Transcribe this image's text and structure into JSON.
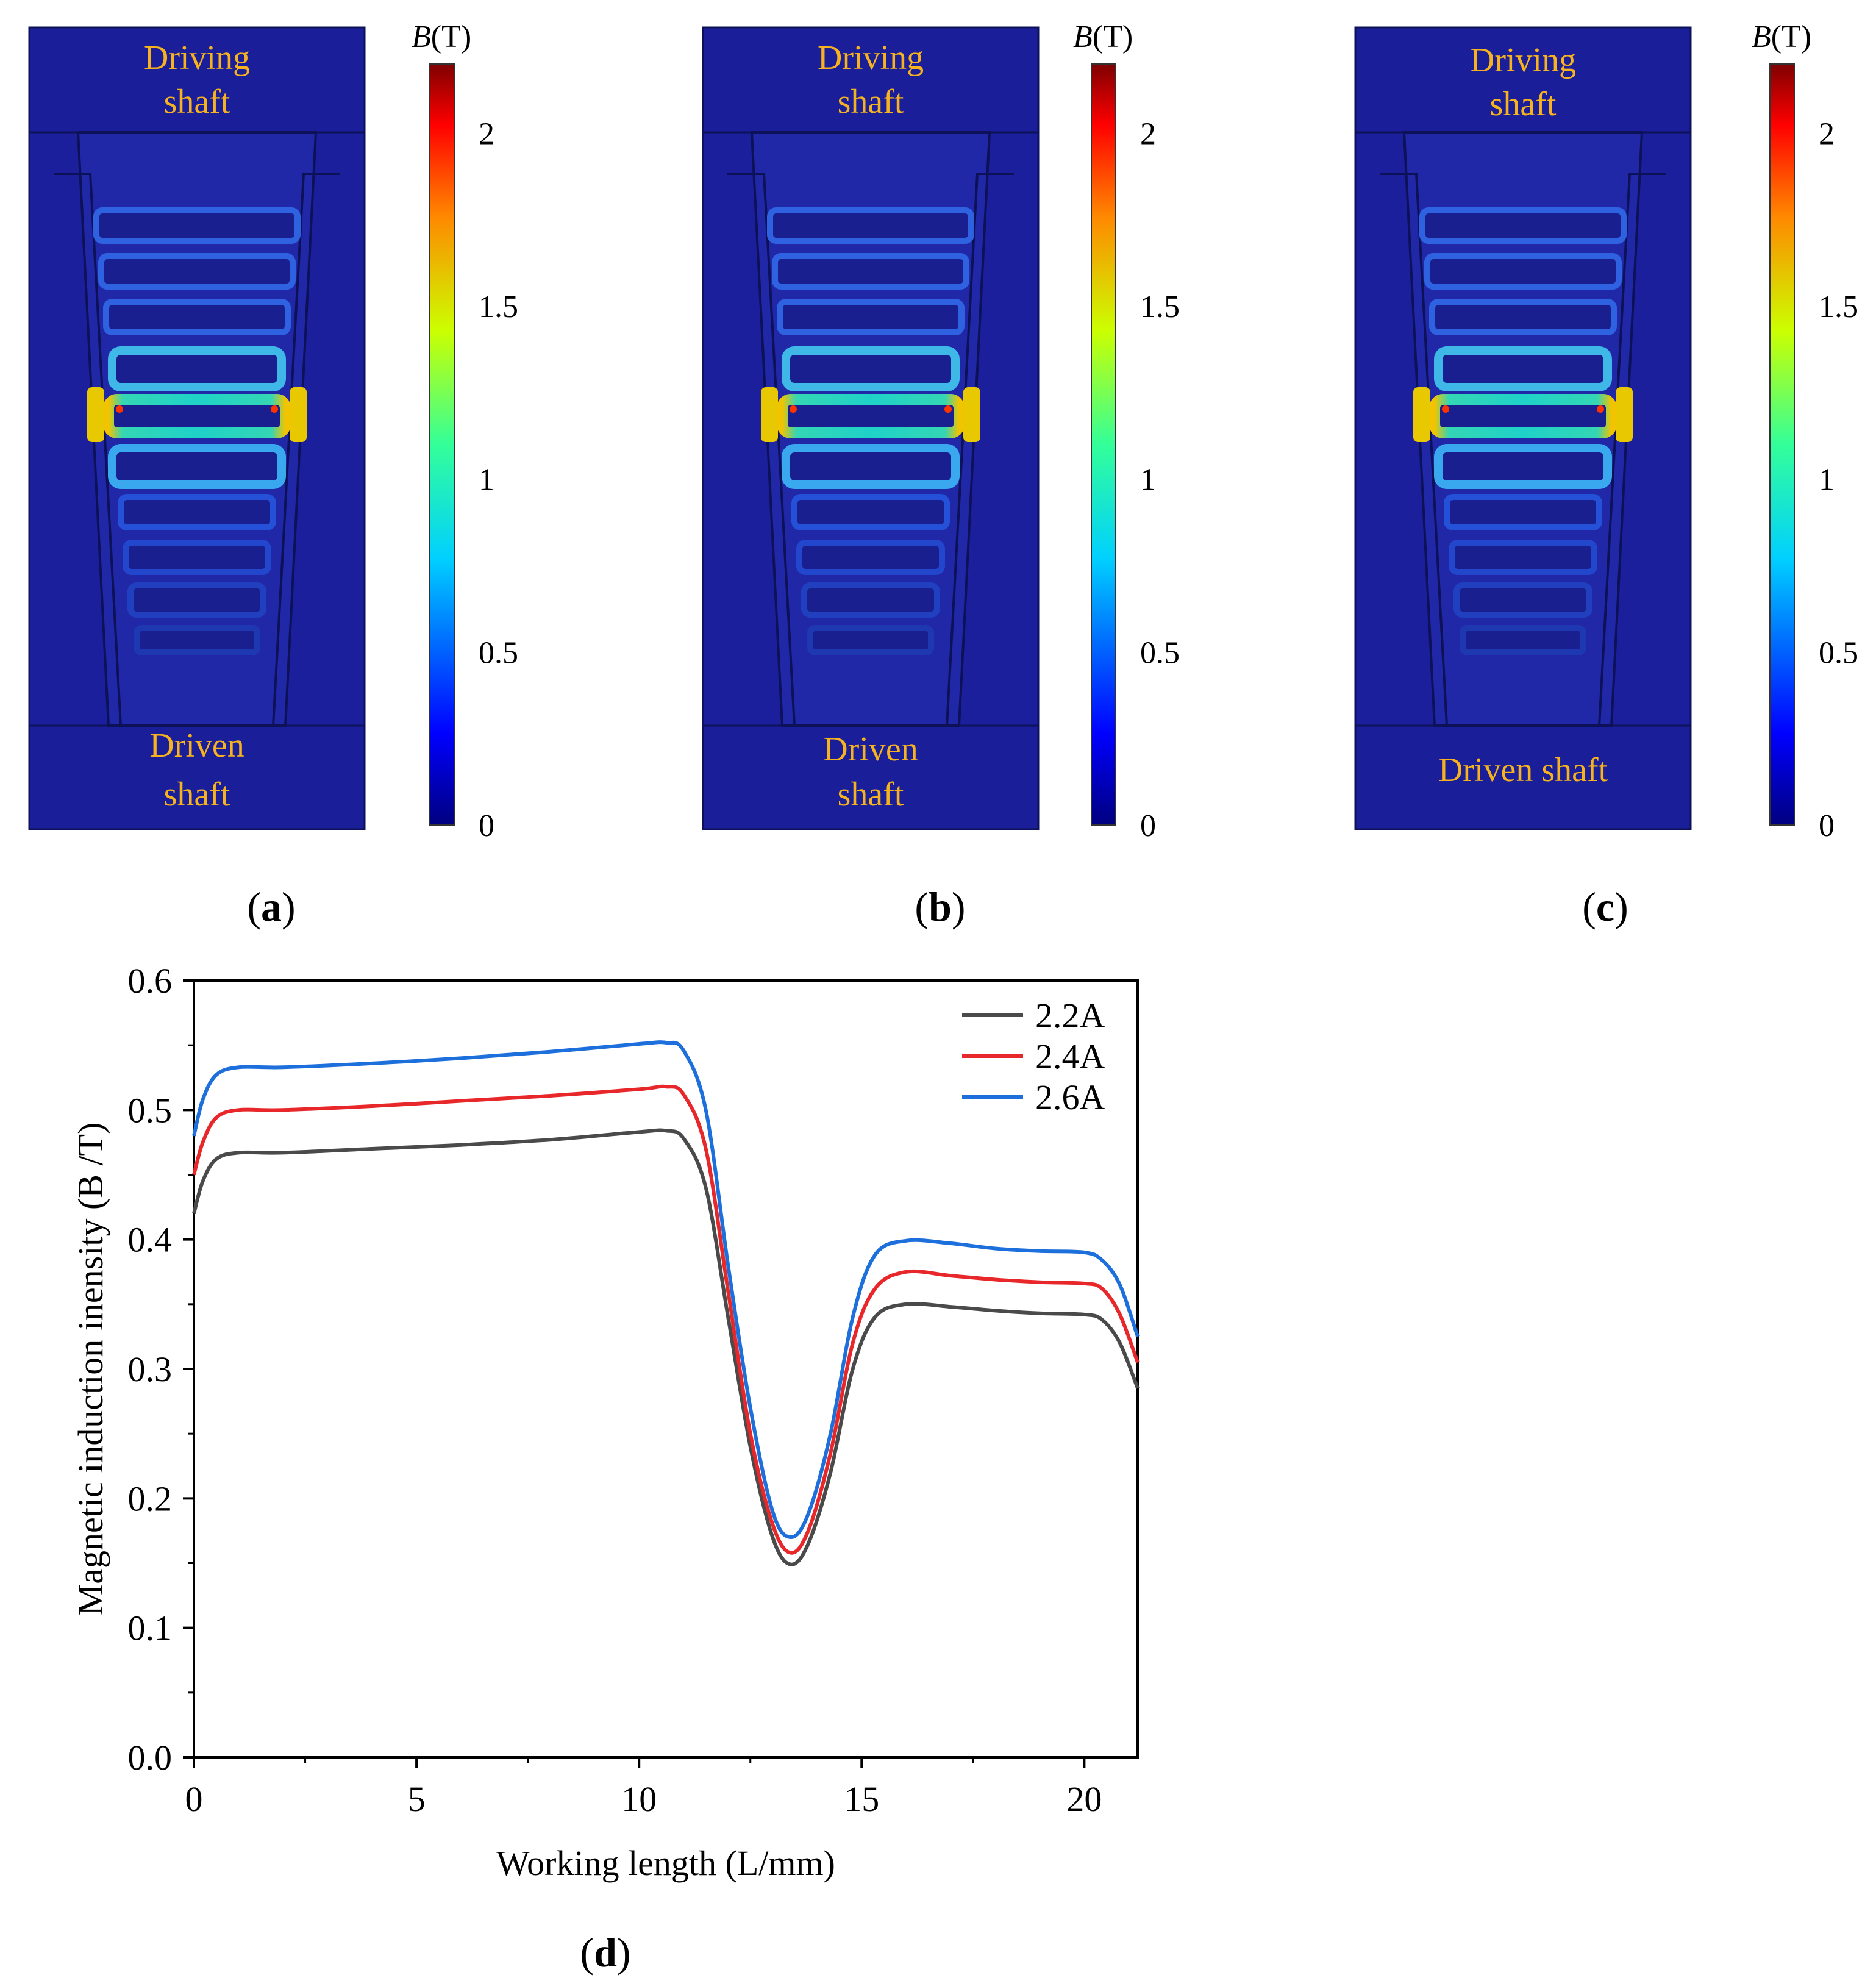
{
  "panels": [
    {
      "id": "a",
      "caption": "a",
      "top_label_line1": "Driving",
      "top_label_line2": "shaft",
      "bottom_label_line1": "Driven",
      "bottom_label_line2": "shaft",
      "colorbar_title_italic": "B",
      "colorbar_title_unit": "(T)",
      "colorbar_ticks": [
        "0",
        "0.5",
        "1",
        "1.5",
        "2"
      ],
      "colorbar_max": 2.2
    },
    {
      "id": "b",
      "caption": "b",
      "top_label_line1": "Driving",
      "top_label_line2": "shaft",
      "bottom_label_line1": "Driven",
      "bottom_label_line2": "shaft",
      "colorbar_title_italic": "B",
      "colorbar_title_unit": "(T)",
      "colorbar_ticks": [
        "0",
        "0.5",
        "1",
        "1.5",
        "2"
      ],
      "colorbar_max": 2.2
    },
    {
      "id": "c",
      "caption": "c",
      "top_label_line1": "Driving",
      "top_label_line2": "shaft",
      "bottom_label_line1": "Driven shaft",
      "bottom_label_line2": "",
      "colorbar_title_italic": "B",
      "colorbar_title_unit": "(T)",
      "colorbar_ticks": [
        "0",
        "0.5",
        "1",
        "1.5",
        "2"
      ],
      "colorbar_max": 2.2
    }
  ],
  "colors": {
    "background_field": "#1b1f9c",
    "label": "#f6b21f",
    "series_2_2A": "#4a4a4a",
    "series_2_4A": "#e8272a",
    "series_2_6A": "#1d6fdc"
  },
  "chart_data": {
    "type": "line",
    "caption": "d",
    "title": "",
    "xlabel": "Working length (L/mm)",
    "ylabel": "Magnetic induction inensity (B /T)",
    "xlim": [
      0,
      21.2
    ],
    "ylim": [
      0.0,
      0.6
    ],
    "xticks": [
      "0",
      "5",
      "10",
      "15",
      "20"
    ],
    "yticks": [
      "0.0",
      "0.1",
      "0.2",
      "0.3",
      "0.4",
      "0.5",
      "0.6"
    ],
    "legend_position": "top-right",
    "x": [
      0,
      0.2,
      0.5,
      1,
      2,
      4,
      6,
      8,
      10,
      10.6,
      11,
      11.5,
      12,
      12.5,
      13,
      13.4,
      13.8,
      14.3,
      14.8,
      15.3,
      16,
      17,
      18,
      19,
      20,
      20.4,
      20.8,
      21.2
    ],
    "series": [
      {
        "name": "2.2A",
        "color": "#4a4a4a",
        "values": [
          0.42,
          0.445,
          0.462,
          0.467,
          0.467,
          0.47,
          0.473,
          0.477,
          0.483,
          0.484,
          0.478,
          0.44,
          0.34,
          0.24,
          0.17,
          0.149,
          0.165,
          0.22,
          0.3,
          0.34,
          0.35,
          0.348,
          0.345,
          0.343,
          0.342,
          0.338,
          0.32,
          0.285
        ]
      },
      {
        "name": "2.4A",
        "color": "#e8272a",
        "values": [
          0.45,
          0.475,
          0.494,
          0.5,
          0.5,
          0.503,
          0.507,
          0.511,
          0.516,
          0.518,
          0.512,
          0.47,
          0.36,
          0.25,
          0.18,
          0.158,
          0.175,
          0.235,
          0.32,
          0.362,
          0.375,
          0.372,
          0.369,
          0.367,
          0.366,
          0.362,
          0.342,
          0.305
        ]
      },
      {
        "name": "2.6A",
        "color": "#1d6fdc",
        "values": [
          0.48,
          0.508,
          0.527,
          0.533,
          0.533,
          0.536,
          0.54,
          0.545,
          0.551,
          0.552,
          0.546,
          0.5,
          0.38,
          0.27,
          0.19,
          0.17,
          0.188,
          0.25,
          0.34,
          0.388,
          0.399,
          0.397,
          0.393,
          0.391,
          0.39,
          0.384,
          0.365,
          0.325
        ]
      }
    ]
  }
}
